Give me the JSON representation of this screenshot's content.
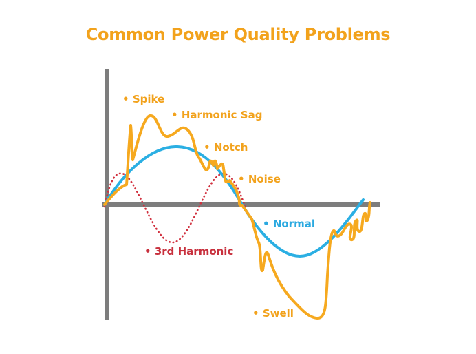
{
  "title": "Common Power Quality Problems",
  "colors": {
    "title": "#f2a21c",
    "distorted_wave": "#f6a91f",
    "normal_wave": "#2bafe3",
    "third_harmonic": "#d1313f",
    "axes": "#7d7d7d",
    "label_orange": "#f2a21c",
    "label_blue": "#2ba9e0",
    "label_red": "#c8303d"
  },
  "labels": {
    "spike": "Spike",
    "harmonic_sag": "Harmonic Sag",
    "notch": "Notch",
    "noise": "Noise",
    "normal": "Normal",
    "third_harmonic": "3rd Harmonic",
    "swell": "Swell"
  },
  "bullet": "•"
}
